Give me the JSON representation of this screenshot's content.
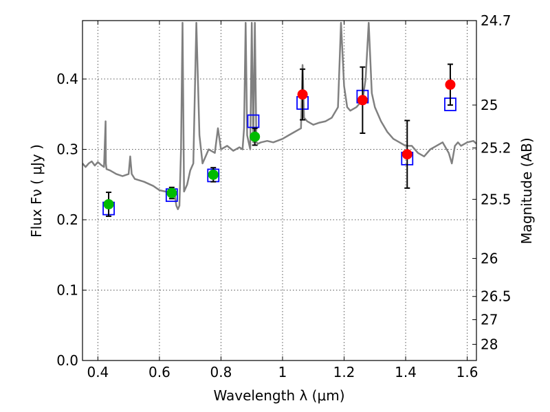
{
  "chart_data": {
    "type": "scatter",
    "xlabel": "Wavelength  λ (μm)",
    "ylabel": "Flux  Fν ( μJy )",
    "y2label": "Magnitude (AB)",
    "xlim": [
      0.35,
      1.63
    ],
    "ylim": [
      0.0,
      0.483
    ],
    "xticks": [
      0.4,
      0.6,
      0.8,
      1.0,
      1.2,
      1.4,
      1.6
    ],
    "xtick_labels": [
      "0.4",
      "0.6",
      "0.8",
      "1",
      "1.2",
      "1.4",
      "1.6"
    ],
    "yticks": [
      0.0,
      0.1,
      0.2,
      0.3,
      0.4
    ],
    "ytick_labels": [
      "0.0",
      "0.1",
      "0.2",
      "0.3",
      "0.4"
    ],
    "y2ticks": [
      {
        "label": "24.7",
        "flux": 0.483
      },
      {
        "label": "25",
        "flux": 0.363
      },
      {
        "label": "25.2",
        "flux": 0.302
      },
      {
        "label": "25.5",
        "flux": 0.229
      },
      {
        "label": "26",
        "flux": 0.145
      },
      {
        "label": "26.5",
        "flux": 0.091
      },
      {
        "label": "27",
        "flux": 0.058
      },
      {
        "label": "28",
        "flux": 0.023
      }
    ],
    "grid": true,
    "colors": {
      "model_spectrum": "#808080",
      "green_points": "#00bb00",
      "red_points": "#ff0000",
      "model_boxes": "#0000ff",
      "errorbars": "#000000"
    },
    "series": [
      {
        "role": "model_spectrum",
        "x": [
          0.35,
          0.36,
          0.37,
          0.38,
          0.39,
          0.4,
          0.41,
          0.42,
          0.425,
          0.426,
          0.428,
          0.44,
          0.46,
          0.48,
          0.5,
          0.505,
          0.51,
          0.52,
          0.55,
          0.58,
          0.6,
          0.62,
          0.64,
          0.65,
          0.655,
          0.66,
          0.665,
          0.67,
          0.675,
          0.68,
          0.69,
          0.7,
          0.71,
          0.72,
          0.73,
          0.74,
          0.75,
          0.76,
          0.78,
          0.79,
          0.8,
          0.82,
          0.84,
          0.86,
          0.87,
          0.875,
          0.88,
          0.885,
          0.89,
          0.895,
          0.9,
          0.905,
          0.91,
          0.915,
          0.92,
          0.93,
          0.95,
          0.97,
          1.0,
          1.02,
          1.04,
          1.06,
          1.065,
          1.07,
          1.08,
          1.1,
          1.12,
          1.14,
          1.16,
          1.18,
          1.19,
          1.2,
          1.21,
          1.22,
          1.24,
          1.26,
          1.27,
          1.28,
          1.29,
          1.3,
          1.32,
          1.34,
          1.36,
          1.38,
          1.4,
          1.42,
          1.44,
          1.46,
          1.48,
          1.5,
          1.52,
          1.54,
          1.55,
          1.56,
          1.57,
          1.58,
          1.6,
          1.62,
          1.63
        ],
        "y": [
          0.28,
          0.275,
          0.28,
          0.283,
          0.277,
          0.282,
          0.278,
          0.275,
          0.34,
          0.28,
          0.272,
          0.27,
          0.265,
          0.262,
          0.265,
          0.29,
          0.265,
          0.258,
          0.254,
          0.248,
          0.242,
          0.24,
          0.238,
          0.235,
          0.22,
          0.215,
          0.22,
          0.3,
          0.48,
          0.24,
          0.25,
          0.27,
          0.28,
          0.48,
          0.32,
          0.28,
          0.29,
          0.3,
          0.295,
          0.33,
          0.3,
          0.305,
          0.298,
          0.303,
          0.3,
          0.33,
          0.48,
          0.32,
          0.31,
          0.3,
          0.48,
          0.31,
          0.48,
          0.31,
          0.308,
          0.31,
          0.312,
          0.31,
          0.315,
          0.32,
          0.325,
          0.33,
          0.42,
          0.345,
          0.34,
          0.335,
          0.338,
          0.34,
          0.345,
          0.36,
          0.48,
          0.39,
          0.36,
          0.355,
          0.36,
          0.37,
          0.4,
          0.48,
          0.38,
          0.36,
          0.34,
          0.325,
          0.315,
          0.31,
          0.305,
          0.305,
          0.295,
          0.29,
          0.3,
          0.305,
          0.31,
          0.295,
          0.28,
          0.305,
          0.31,
          0.305,
          0.31,
          0.312,
          0.308
        ]
      },
      {
        "role": "green_points",
        "x": [
          0.435,
          0.64,
          0.775,
          0.91
        ],
        "y": [
          0.222,
          0.238,
          0.264,
          0.318
        ],
        "yerr": [
          0.017,
          0.008,
          0.01,
          0.012
        ]
      },
      {
        "role": "red_points",
        "x": [
          1.065,
          1.26,
          1.405,
          1.545
        ],
        "y": [
          0.378,
          0.37,
          0.293,
          0.392
        ],
        "yerr": [
          0.036,
          0.047,
          0.048,
          0.029
        ]
      },
      {
        "role": "model_boxes",
        "x": [
          0.435,
          0.64,
          0.775,
          0.905,
          1.065,
          1.26,
          1.405,
          1.545
        ],
        "y": [
          0.216,
          0.235,
          0.263,
          0.34,
          0.366,
          0.375,
          0.287,
          0.364
        ]
      }
    ]
  }
}
